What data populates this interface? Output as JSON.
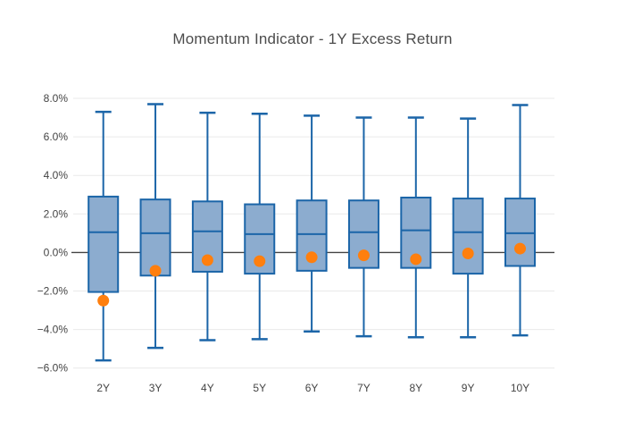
{
  "page": {
    "title": "Momentum Indicator - 1Y Excess Return"
  },
  "chart_data": {
    "type": "box",
    "title": "Momentum Indicator - 1Y Excess Return",
    "categories": [
      "2Y",
      "3Y",
      "4Y",
      "5Y",
      "6Y",
      "7Y",
      "8Y",
      "9Y",
      "10Y"
    ],
    "series": [
      {
        "role": "box-whisker-distribution",
        "stats": [
          {
            "low": -5.6,
            "q1": -2.05,
            "median": 1.05,
            "q3": 2.9,
            "high": 7.3
          },
          {
            "low": -4.95,
            "q1": -1.2,
            "median": 1.0,
            "q3": 2.75,
            "high": 7.7
          },
          {
            "low": -4.55,
            "q1": -1.0,
            "median": 1.1,
            "q3": 2.65,
            "high": 7.25
          },
          {
            "low": -4.5,
            "q1": -1.1,
            "median": 0.95,
            "q3": 2.5,
            "high": 7.2
          },
          {
            "low": -4.1,
            "q1": -0.95,
            "median": 0.95,
            "q3": 2.7,
            "high": 7.1
          },
          {
            "low": -4.35,
            "q1": -0.8,
            "median": 1.05,
            "q3": 2.7,
            "high": 7.0
          },
          {
            "low": -4.4,
            "q1": -0.8,
            "median": 1.15,
            "q3": 2.85,
            "high": 7.0
          },
          {
            "low": -4.4,
            "q1": -1.1,
            "median": 1.05,
            "q3": 2.8,
            "high": 6.95
          },
          {
            "low": -4.3,
            "q1": -0.7,
            "median": 1.0,
            "q3": 2.8,
            "high": 7.65
          }
        ]
      },
      {
        "role": "highlight-point",
        "values": [
          -2.5,
          -0.95,
          -0.4,
          -0.45,
          -0.25,
          -0.15,
          -0.35,
          -0.05,
          0.2
        ]
      }
    ],
    "yaxis": {
      "tick_values": [
        8,
        6,
        4,
        2,
        0,
        -2,
        -4,
        -6
      ],
      "tick_labels": [
        "8.0%",
        "6.0%",
        "4.0%",
        "2.0%",
        "0.0%",
        "−2.0%",
        "−4.0%",
        "−6.0%"
      ],
      "ylim": [
        -6.5,
        8.3
      ],
      "zeroline": true
    },
    "xaxis": {
      "tick_labels": [
        "2Y",
        "3Y",
        "4Y",
        "5Y",
        "6Y",
        "7Y",
        "8Y",
        "9Y",
        "10Y"
      ]
    },
    "grid": true,
    "legend": "none",
    "colors": {
      "box_line": "#1b65a8",
      "box_fill": "#8caccf",
      "point": "#ff7f0e",
      "gridline": "#e9e9e9",
      "zeroline": "#444444",
      "tick_text": "#444444",
      "title_text": "#4c4c4c",
      "background": "#ffffff"
    }
  }
}
